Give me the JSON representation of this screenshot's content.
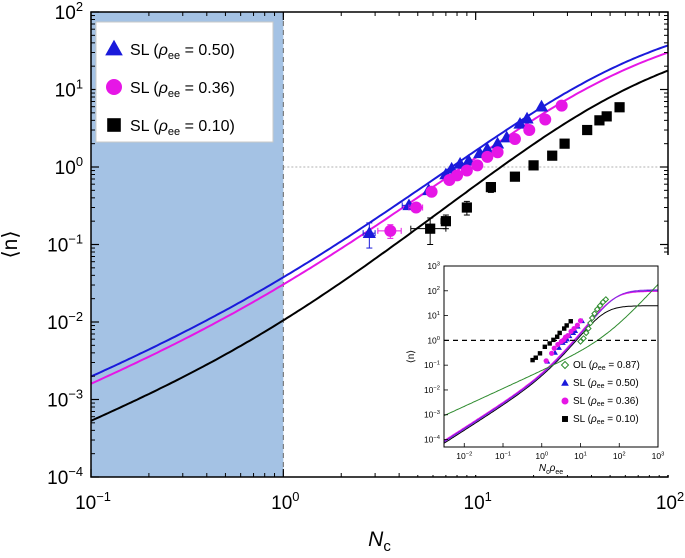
{
  "chart_data": [
    {
      "type": "scatter",
      "panel": "main",
      "xlabel": "N",
      "xlabel_sub": "c",
      "ylabel": "⟨n⟩",
      "x_scale": "log",
      "y_scale": "log",
      "xlim": [
        0.1,
        100
      ],
      "ylim": [
        0.0001,
        100
      ],
      "x_ticks": [
        {
          "base": "10",
          "exp": "−1"
        },
        {
          "base": "10",
          "exp": "0"
        },
        {
          "base": "10",
          "exp": "1"
        },
        {
          "base": "10",
          "exp": "2"
        }
      ],
      "y_ticks": [
        {
          "base": "10",
          "exp": "−4"
        },
        {
          "base": "10",
          "exp": "−3"
        },
        {
          "base": "10",
          "exp": "−2"
        },
        {
          "base": "10",
          "exp": "−1"
        },
        {
          "base": "10",
          "exp": "0"
        },
        {
          "base": "10",
          "exp": "1"
        },
        {
          "base": "10",
          "exp": "2"
        }
      ],
      "shaded_region_x": [
        0.1,
        1
      ],
      "shaded_color": "#a4c2e4",
      "reference_line_y": 1,
      "grid": false,
      "legend_position": "top-left",
      "series": [
        {
          "name": "SL (ρee = 0.50)",
          "legend_text": "SL (",
          "legend_rho": "ρ",
          "legend_sub": "ee",
          "legend_value": " = 0.50)",
          "marker": "triangle",
          "color": "#1a1adb",
          "fit": {
            "a": 0.0208,
            "b": 0.94
          },
          "points": [
            {
              "x": 2.8,
              "y": 0.14,
              "xerr": 0.2,
              "yerr": 0.05
            },
            {
              "x": 4.5,
              "y": 0.32,
              "xerr": 0.35
            },
            {
              "x": 5.7,
              "y": 0.5
            },
            {
              "x": 7.0,
              "y": 0.8
            },
            {
              "x": 7.5,
              "y": 0.95
            },
            {
              "x": 8.3,
              "y": 1.1
            },
            {
              "x": 9.2,
              "y": 1.2
            },
            {
              "x": 10.5,
              "y": 1.5
            },
            {
              "x": 11.5,
              "y": 1.7
            },
            {
              "x": 13.0,
              "y": 2.0
            },
            {
              "x": 14.5,
              "y": 2.4
            },
            {
              "x": 17.0,
              "y": 3.6
            },
            {
              "x": 18.5,
              "y": 4.2
            },
            {
              "x": 22.0,
              "y": 6.0
            }
          ]
        },
        {
          "name": "SL (ρee = 0.36)",
          "legend_text": "SL (",
          "legend_rho": "ρ",
          "legend_sub": "ee",
          "legend_value": " = 0.36)",
          "marker": "circle",
          "color": "#e616e6",
          "fit": {
            "a": 0.0168,
            "b": 0.94
          },
          "points": [
            {
              "x": 3.6,
              "y": 0.15,
              "xerr": 0.5,
              "yerr": 0.03
            },
            {
              "x": 4.9,
              "y": 0.3,
              "xerr": 0.4
            },
            {
              "x": 5.9,
              "y": 0.48,
              "xerr": 0.3
            },
            {
              "x": 7.3,
              "y": 0.68
            },
            {
              "x": 8.0,
              "y": 0.78
            },
            {
              "x": 9.0,
              "y": 0.9
            },
            {
              "x": 10.2,
              "y": 1.05
            },
            {
              "x": 11.5,
              "y": 1.35
            },
            {
              "x": 13.0,
              "y": 1.55
            },
            {
              "x": 16.0,
              "y": 2.3
            },
            {
              "x": 19.0,
              "y": 3.0
            },
            {
              "x": 23.0,
              "y": 4.1
            },
            {
              "x": 28.0,
              "y": 6.2
            }
          ]
        },
        {
          "name": "SL (ρee = 0.10)",
          "legend_text": "SL (",
          "legend_rho": "ρ",
          "legend_sub": "ee",
          "legend_value": " = 0.10)",
          "marker": "square",
          "color": "#000000",
          "fit": {
            "a": 0.00578,
            "b": 1.0
          },
          "points": [
            {
              "x": 5.8,
              "y": 0.16,
              "xerr": 1.2,
              "yerr": 0.06
            },
            {
              "x": 7.0,
              "y": 0.2,
              "xerr": 0.4,
              "yerr": 0.04
            },
            {
              "x": 9.0,
              "y": 0.3,
              "yerr": 0.06
            },
            {
              "x": 12.0,
              "y": 0.55,
              "yerr": 0.08
            },
            {
              "x": 16.0,
              "y": 0.75
            },
            {
              "x": 20.0,
              "y": 1.05
            },
            {
              "x": 25.0,
              "y": 1.4
            },
            {
              "x": 29.0,
              "y": 2.0
            },
            {
              "x": 38.0,
              "y": 3.0
            },
            {
              "x": 44.0,
              "y": 4.0
            },
            {
              "x": 48.0,
              "y": 4.5
            },
            {
              "x": 56.0,
              "y": 5.9
            }
          ]
        }
      ]
    },
    {
      "type": "scatter",
      "panel": "inset",
      "xlabel_parts": {
        "n": "N",
        "c": "c",
        "rho": "ρ",
        "ee": "ee"
      },
      "ylabel": "⟨n⟩",
      "x_scale": "log",
      "y_scale": "log",
      "xlim": [
        0.003,
        1000
      ],
      "ylim": [
        5e-05,
        1000
      ],
      "x_ticks": [
        {
          "base": "10",
          "exp": "−2"
        },
        {
          "base": "10",
          "exp": "−1"
        },
        {
          "base": "10",
          "exp": "0"
        },
        {
          "base": "10",
          "exp": "1"
        },
        {
          "base": "10",
          "exp": "2"
        },
        {
          "base": "10",
          "exp": "3"
        }
      ],
      "y_ticks": [
        {
          "base": "10",
          "exp": "−4"
        },
        {
          "base": "10",
          "exp": "−3"
        },
        {
          "base": "10",
          "exp": "−2"
        },
        {
          "base": "10",
          "exp": "−1"
        },
        {
          "base": "10",
          "exp": "0"
        },
        {
          "base": "10",
          "exp": "1"
        },
        {
          "base": "10",
          "exp": "2"
        },
        {
          "base": "10",
          "exp": "3"
        }
      ],
      "reference_line_y": 1,
      "legend_position": "bottom-right",
      "series": [
        {
          "legend_label": "OL (",
          "legend_rho": "ρ",
          "legend_sub": "ee",
          "legend_value": " = 0.87)",
          "marker": "diamond-open",
          "color": "#2e8b2e",
          "points": [
            [
              10,
              0.9
            ],
            [
              12,
              1.2
            ],
            [
              14,
              2
            ],
            [
              16,
              3
            ],
            [
              18,
              5
            ],
            [
              20,
              8
            ],
            [
              23,
              12
            ],
            [
              27,
              18
            ],
            [
              32,
              25
            ],
            [
              38,
              35
            ],
            [
              45,
              45
            ]
          ]
        },
        {
          "legend_label": "SL (",
          "legend_rho": "ρ",
          "legend_sub": "ee",
          "legend_value": " = 0.50)",
          "marker": "triangle",
          "color": "#1a1adb",
          "points": [
            [
              1.4,
              0.14
            ],
            [
              2.2,
              0.32
            ],
            [
              2.8,
              0.5
            ],
            [
              3.5,
              0.8
            ],
            [
              4,
              0.95
            ],
            [
              4.5,
              1.1
            ],
            [
              5.2,
              1.5
            ],
            [
              6.5,
              2
            ],
            [
              7.3,
              2.4
            ],
            [
              8.5,
              3.6
            ],
            [
              11,
              6
            ]
          ]
        },
        {
          "legend_label": "SL (",
          "legend_rho": "ρ",
          "legend_sub": "ee",
          "legend_value": " = 0.36)",
          "marker": "circle",
          "color": "#e616e6",
          "points": [
            [
              1.3,
              0.15
            ],
            [
              1.8,
              0.3
            ],
            [
              2.1,
              0.48
            ],
            [
              2.6,
              0.68
            ],
            [
              3.2,
              0.9
            ],
            [
              3.7,
              1.05
            ],
            [
              4.1,
              1.35
            ],
            [
              4.7,
              1.55
            ],
            [
              5.7,
              2.3
            ],
            [
              6.8,
              3
            ],
            [
              8.3,
              4.1
            ],
            [
              10,
              6.2
            ]
          ]
        },
        {
          "legend_label": "SL (",
          "legend_rho": "ρ",
          "legend_sub": "ee",
          "legend_value": " = 0.10)",
          "marker": "square",
          "color": "#000000",
          "points": [
            [
              0.58,
              0.16
            ],
            [
              0.7,
              0.2
            ],
            [
              0.9,
              0.3
            ],
            [
              1.2,
              0.55
            ],
            [
              1.6,
              0.75
            ],
            [
              2,
              1.05
            ],
            [
              2.5,
              1.4
            ],
            [
              2.9,
              2
            ],
            [
              3.8,
              3
            ],
            [
              4.4,
              4
            ],
            [
              5.6,
              5.9
            ]
          ]
        }
      ],
      "curves": [
        {
          "color": "#000000",
          "kind": "sat",
          "a": 0.0235,
          "b": 1.0,
          "cap": 25
        },
        {
          "color": "#1a1adb",
          "kind": "sat",
          "a": 0.028,
          "b": 0.94,
          "cap": 100
        },
        {
          "color": "#e616e6",
          "kind": "sat",
          "a": 0.03,
          "b": 0.94,
          "cap": 95
        },
        {
          "color": "#8a2be2",
          "kind": "sat",
          "a": 0.026,
          "b": 0.97,
          "cap": 110
        },
        {
          "color": "#2e8b2e",
          "kind": "pow",
          "a": 0.06,
          "b": 0.72
        }
      ]
    }
  ]
}
